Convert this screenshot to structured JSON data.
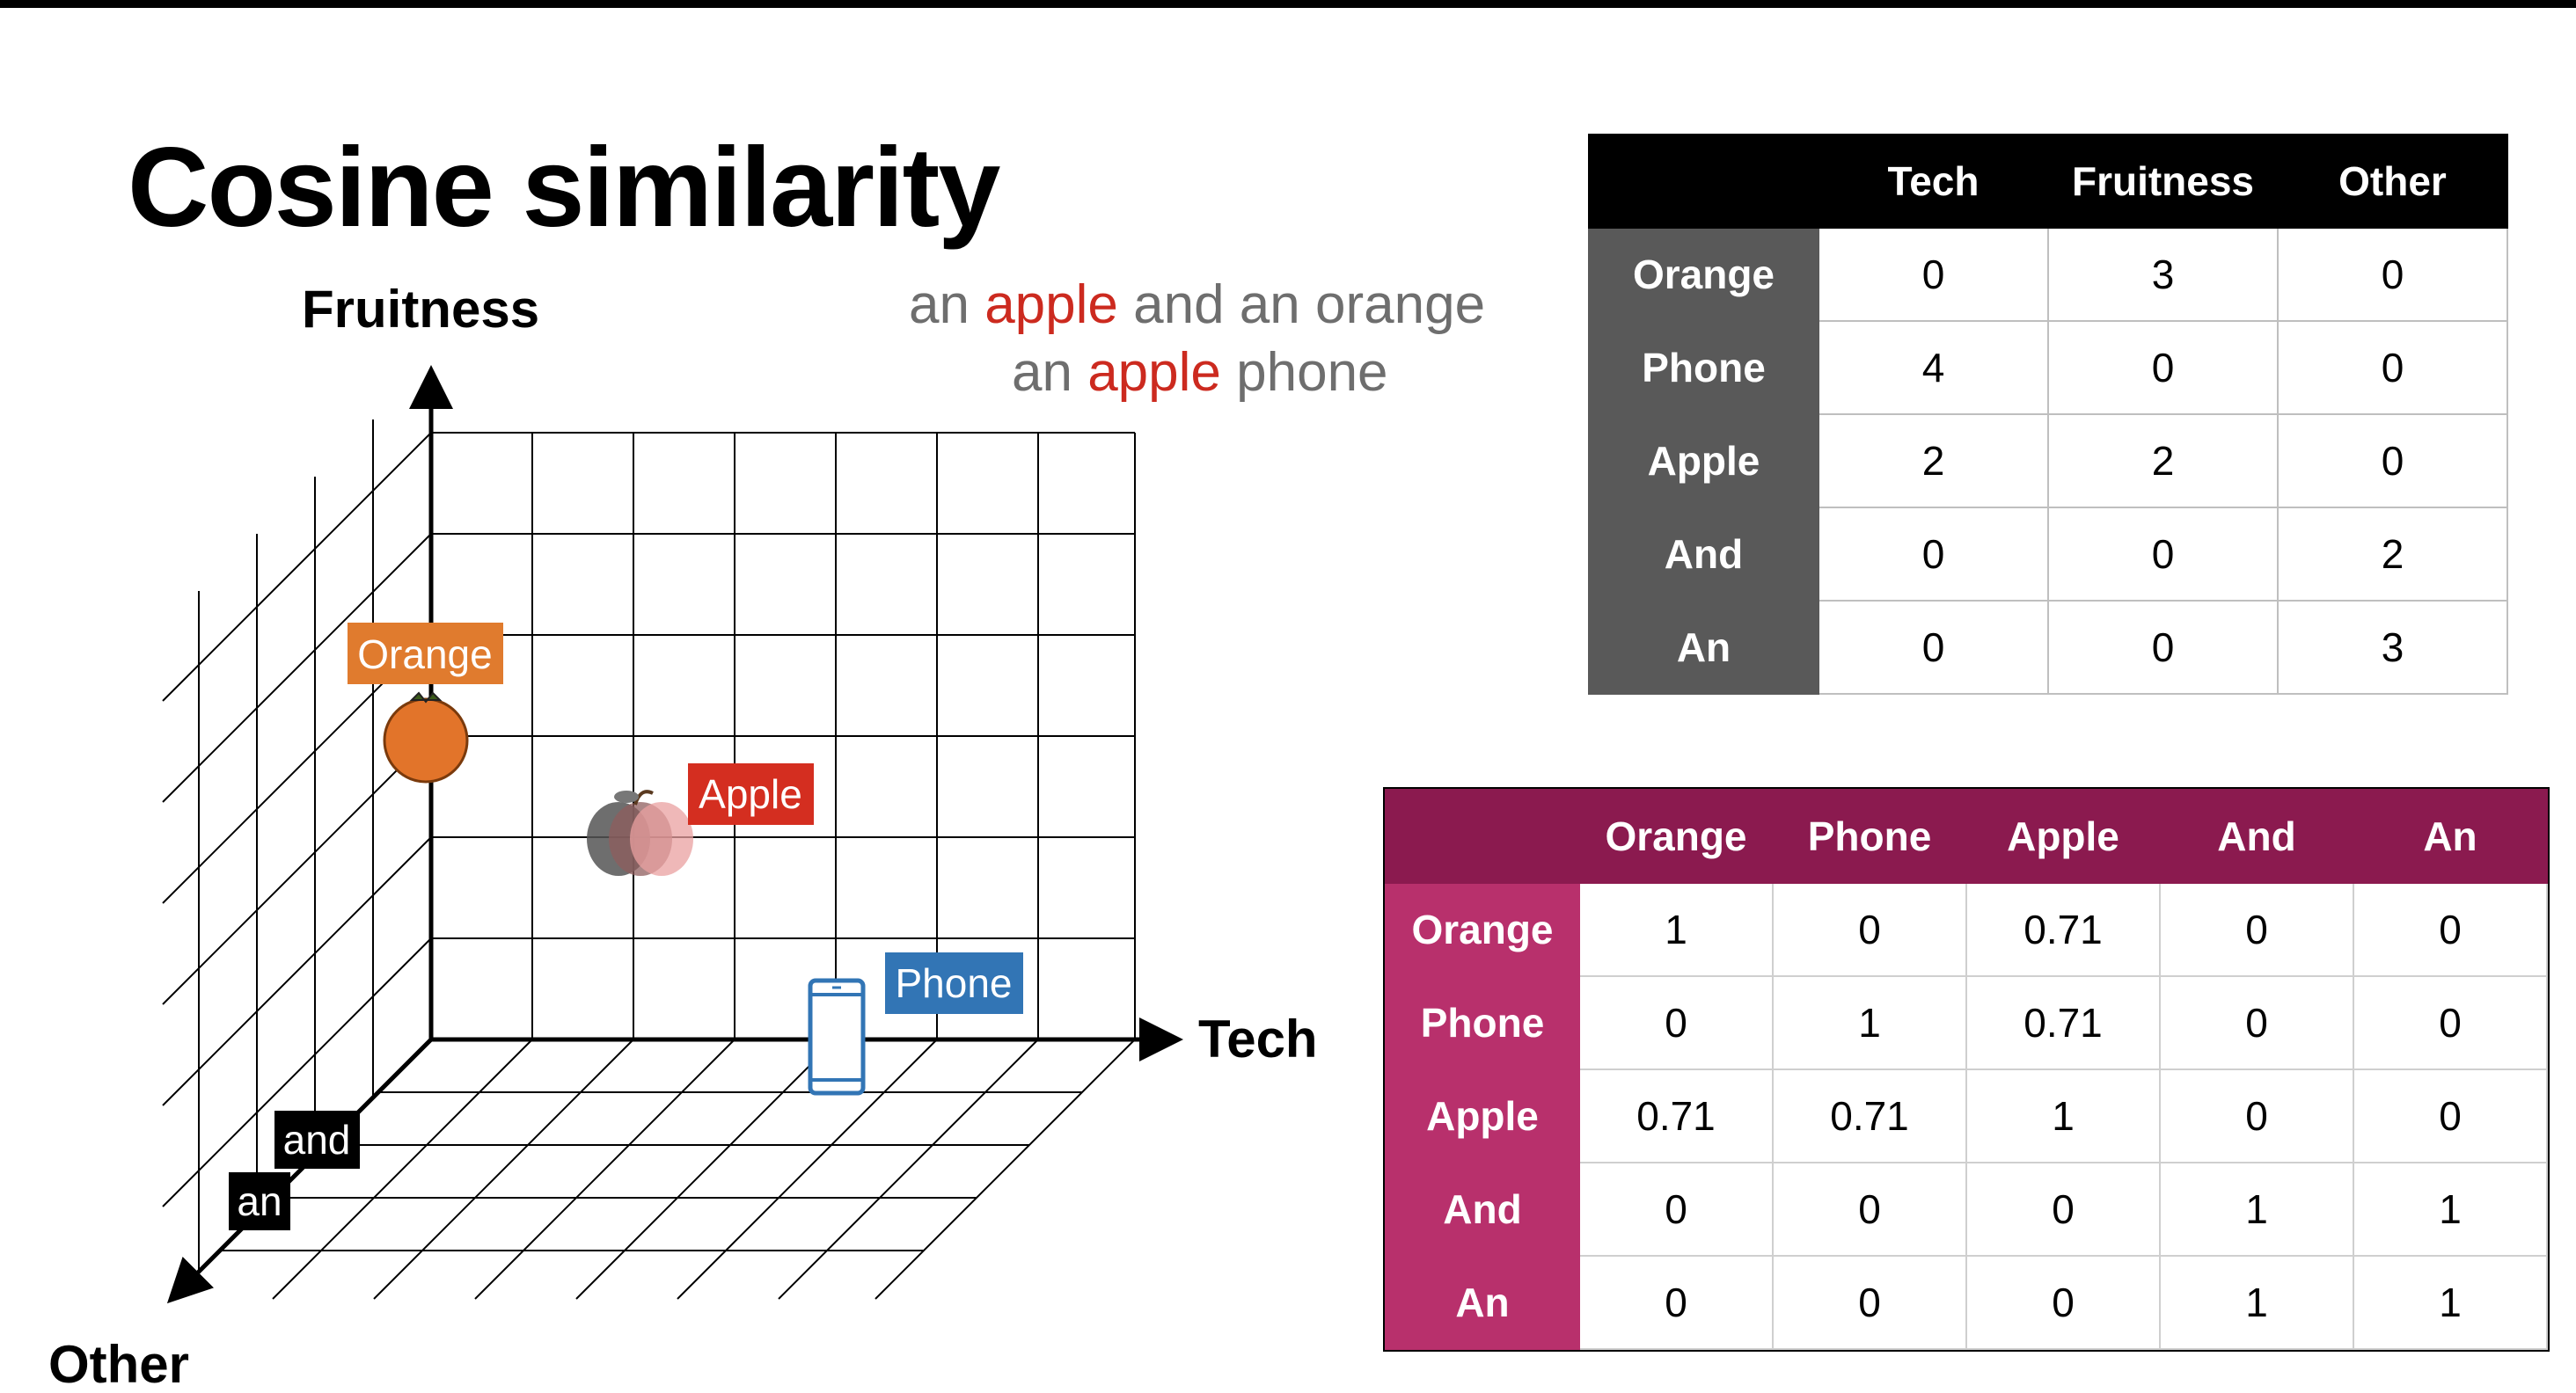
{
  "title": "Cosine similarity",
  "captions": [
    {
      "pre": "an ",
      "highlight": "apple",
      "post": " and an orange"
    },
    {
      "pre": "an ",
      "highlight": "apple",
      "post": " phone"
    }
  ],
  "axes": {
    "y": "Fruitness",
    "x": "Tech",
    "z": "Other"
  },
  "tags": {
    "orange": {
      "label": "Orange",
      "color": "#e07b2e"
    },
    "apple": {
      "label": "Apple",
      "color": "#d42e20"
    },
    "phone": {
      "label": "Phone",
      "color": "#3275b5"
    },
    "and": {
      "label": "and",
      "color": "#000000"
    },
    "an": {
      "label": "an",
      "color": "#000000"
    }
  },
  "icons": {
    "orange": "orange-fruit-icon",
    "apple": "apple-fruit-icon",
    "phone": "smartphone-icon"
  },
  "count_table": {
    "columns": [
      "",
      "Tech",
      "Fruitness",
      "Other"
    ],
    "rows": [
      {
        "label": "Orange",
        "values": [
          "0",
          "3",
          "0"
        ]
      },
      {
        "label": "Phone",
        "values": [
          "4",
          "0",
          "0"
        ]
      },
      {
        "label": "Apple",
        "values": [
          "2",
          "2",
          "0"
        ]
      },
      {
        "label": "And",
        "values": [
          "0",
          "0",
          "2"
        ]
      },
      {
        "label": "An",
        "values": [
          "0",
          "0",
          "3"
        ]
      }
    ]
  },
  "similarity_table": {
    "columns": [
      "",
      "Orange",
      "Phone",
      "Apple",
      "And",
      "An"
    ],
    "rows": [
      {
        "label": "Orange",
        "values": [
          "1",
          "0",
          "0.71",
          "0",
          "0"
        ]
      },
      {
        "label": "Phone",
        "values": [
          "0",
          "1",
          "0.71",
          "0",
          "0"
        ]
      },
      {
        "label": "Apple",
        "values": [
          "0.71",
          "0.71",
          "1",
          "0",
          "0"
        ]
      },
      {
        "label": "And",
        "values": [
          "0",
          "0",
          "0",
          "1",
          "1"
        ]
      },
      {
        "label": "An",
        "values": [
          "0",
          "0",
          "0",
          "1",
          "1"
        ]
      }
    ]
  },
  "colors": {
    "count_header": "#000000",
    "count_row_header": "#595959",
    "sim_header": "#8b1a4f",
    "sim_row_header": "#b8306c",
    "highlight": "#cc2a1f"
  }
}
